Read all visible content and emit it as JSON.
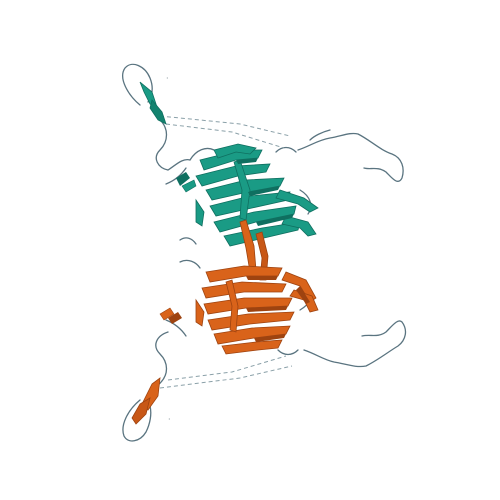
{
  "figure": {
    "kind": "protein-cartoon",
    "colors": {
      "chain_a": "#1a9b85",
      "chain_a_dark": "#0f6f60",
      "chain_b": "#d9631a",
      "chain_b_dark": "#9e4310",
      "loop": "#5a7480",
      "dashed": "#8aa0a8",
      "background": "#ffffff"
    }
  }
}
